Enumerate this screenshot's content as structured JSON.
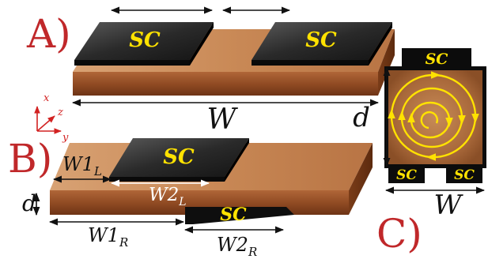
{
  "panels": {
    "a": "A)",
    "b": "B)",
    "c": "C)"
  },
  "sc_label": "SC",
  "dimensions": {
    "w": "W",
    "d": "d",
    "w1l": "W1",
    "w1l_sub": "L",
    "w2l": "W2",
    "w2l_sub": "L",
    "w1r": "W1",
    "w1r_sub": "R",
    "w2r": "W2",
    "w2r_sub": "R",
    "w_c": "W"
  },
  "axes": {
    "x": "x",
    "y": "y",
    "z": "z"
  },
  "colors": {
    "panel_label": "#c0282a",
    "sc_text": "#ffe200",
    "copper": "#b36a3b",
    "sc_plate": "#1a1a1a"
  }
}
